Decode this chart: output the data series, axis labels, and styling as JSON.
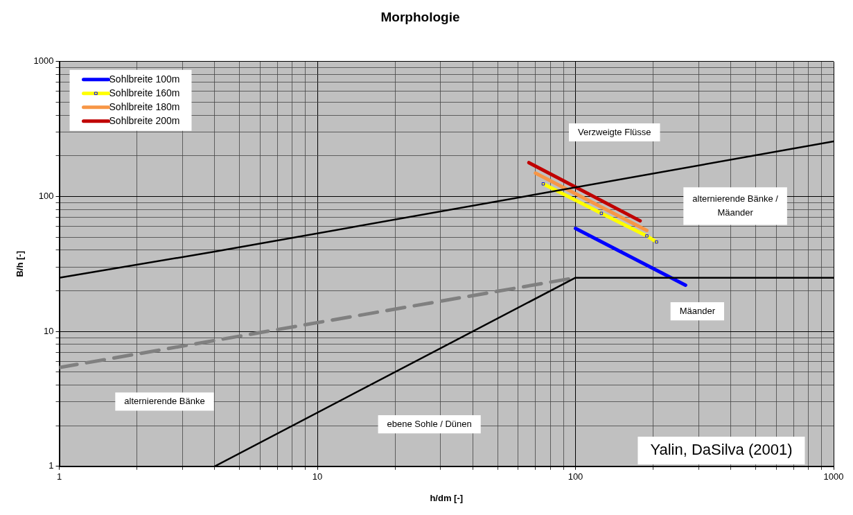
{
  "chart_data": {
    "type": "line",
    "title": "Morphologie",
    "xlabel": "h/dm [-]",
    "ylabel": "B/h [-]",
    "log": "xy",
    "grid": true,
    "legend": "top left",
    "line_style": "solid",
    "marker": "none",
    "xlim": [
      1,
      1000
    ],
    "ylim": [
      1,
      1000
    ],
    "xticks": [
      1,
      {
        "value": 2,
        "label": null
      },
      {
        "value": 3,
        "label": null
      },
      {
        "value": 4,
        "label": null
      },
      {
        "value": 5,
        "label": null
      },
      {
        "value": 6,
        "label": null
      },
      {
        "value": 7,
        "label": null
      },
      {
        "value": 8,
        "label": null
      },
      {
        "value": 9,
        "label": null
      },
      10,
      {
        "value": 20,
        "label": null
      },
      {
        "value": 30,
        "label": null
      },
      {
        "value": 40,
        "label": null
      },
      {
        "value": 50,
        "label": null
      },
      {
        "value": 60,
        "label": null
      },
      {
        "value": 70,
        "label": null
      },
      {
        "value": 80,
        "label": null
      },
      {
        "value": 90,
        "label": null
      },
      100,
      {
        "value": 200,
        "label": null
      },
      {
        "value": 300,
        "label": null
      },
      {
        "value": 400,
        "label": null
      },
      {
        "value": 500,
        "label": null
      },
      {
        "value": 600,
        "label": null
      },
      {
        "value": 700,
        "label": null
      },
      {
        "value": 800,
        "label": null
      },
      {
        "value": 900,
        "label": null
      },
      1000
    ],
    "yticks": [
      1,
      {
        "value": 2,
        "label": null
      },
      {
        "value": 3,
        "label": null
      },
      {
        "value": 4,
        "label": null
      },
      {
        "value": 5,
        "label": null
      },
      {
        "value": 6,
        "label": null
      },
      {
        "value": 7,
        "label": null
      },
      {
        "value": 8,
        "label": null
      },
      {
        "value": 9,
        "label": null
      },
      10,
      {
        "value": 20,
        "label": null
      },
      {
        "value": 30,
        "label": null
      },
      {
        "value": 40,
        "label": null
      },
      {
        "value": 50,
        "label": null
      },
      {
        "value": 60,
        "label": null
      },
      {
        "value": 70,
        "label": null
      },
      {
        "value": 80,
        "label": null
      },
      {
        "value": 90,
        "label": null
      },
      100,
      {
        "value": 200,
        "label": null
      },
      {
        "value": 300,
        "label": null
      },
      {
        "value": 400,
        "label": null
      },
      {
        "value": 500,
        "label": null
      },
      {
        "value": 600,
        "label": null
      },
      {
        "value": 700,
        "label": null
      },
      {
        "value": 800,
        "label": null
      },
      {
        "value": 900,
        "label": null
      },
      1000
    ],
    "series": [
      {
        "color": "#000000",
        "x": [
          1,
          4,
          1000
        ],
        "values": [
          25,
          39,
          256
        ]
      },
      {
        "color": "#000000",
        "x": [
          4,
          100,
          1000
        ],
        "values": [
          1,
          25,
          25
        ]
      },
      {
        "color": "#808080",
        "line_style": "dashed",
        "x": [
          1,
          100
        ],
        "values": [
          5.4,
          25
        ]
      },
      {
        "name": "Sohlbreite 100m",
        "color": "#0000ff",
        "x": [
          100,
          267
        ],
        "values": [
          58,
          22
        ]
      },
      {
        "name": "Sohlbreite 160m",
        "color": "#ffff00",
        "marker": "square",
        "x": [
          75,
          126,
          189,
          206
        ],
        "values": [
          124,
          75,
          51,
          46
        ]
      },
      {
        "name": "Sohlbreite 180m",
        "color": "#f79646",
        "x": [
          70,
          189
        ],
        "values": [
          149,
          56
        ]
      },
      {
        "name": "Sohlbreite 200m",
        "color": "#c00000",
        "x": [
          66,
          178
        ],
        "values": [
          178,
          66
        ]
      }
    ],
    "annotations": [
      "Verzweigte Flüsse",
      "alternierende Bänke /\nMäander",
      "Mäander",
      "alternierende Bänke",
      "ebene Sohle / Dünen",
      "Yalin, DaSilva (2001)"
    ]
  }
}
